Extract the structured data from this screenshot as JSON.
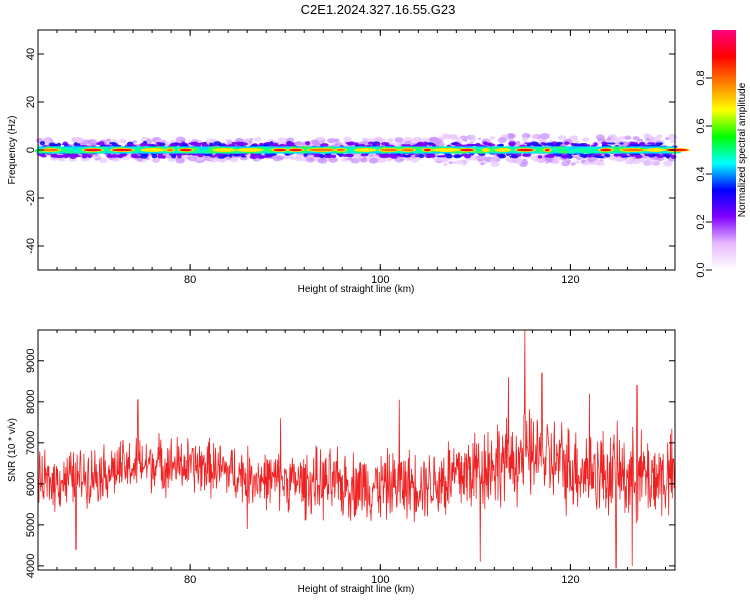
{
  "title": "C2E1.2024.327.16.55.G23",
  "chart_data": [
    {
      "type": "heatmap",
      "xlabel": "Height of straight line (km)",
      "ylabel": "Frequency (Hz)",
      "xlim": [
        64,
        131
      ],
      "ylim": [
        -50,
        50
      ],
      "xticks": [
        80,
        100,
        120
      ],
      "yticks": [
        40,
        20,
        0,
        -20,
        -40
      ],
      "grid": false,
      "colorbar": {
        "label": "Normalized spectral amplitude",
        "range": [
          0,
          1
        ],
        "ticks": [
          "0.0",
          "0.2",
          "0.4",
          "0.6",
          "0.8"
        ],
        "colors": [
          "#ffffff",
          "#e6b8ff",
          "#8000ff",
          "#0000ff",
          "#00ffff",
          "#00ff00",
          "#ffff00",
          "#ff8000",
          "#ff0000",
          "#ff0080"
        ]
      },
      "band": {
        "center_hz": 0,
        "core_halfwidth_hz": 1.5,
        "halo_halfwidth_hz": 4.5
      }
    },
    {
      "type": "line",
      "xlabel": "Height of straight line (km)",
      "ylabel": "SNR (10 * v/v)",
      "xlim": [
        64,
        131
      ],
      "ylim": [
        3900,
        9750
      ],
      "xticks": [
        80,
        100,
        120
      ],
      "yticks": [
        4000,
        5000,
        6000,
        7000,
        8000,
        9000
      ],
      "grid": false,
      "color": "#ee2222",
      "trend": [
        {
          "x": 64,
          "y": 6000
        },
        {
          "x": 70,
          "y": 6250
        },
        {
          "x": 76,
          "y": 6500
        },
        {
          "x": 82,
          "y": 6400
        },
        {
          "x": 88,
          "y": 6100
        },
        {
          "x": 94,
          "y": 6000
        },
        {
          "x": 100,
          "y": 5950
        },
        {
          "x": 106,
          "y": 6050
        },
        {
          "x": 112,
          "y": 6500
        },
        {
          "x": 116,
          "y": 6700
        },
        {
          "x": 120,
          "y": 6400
        },
        {
          "x": 126,
          "y": 6200
        },
        {
          "x": 131,
          "y": 6150
        }
      ],
      "spikes": [
        {
          "x": 74.5,
          "y": 8050
        },
        {
          "x": 89.5,
          "y": 7600
        },
        {
          "x": 102,
          "y": 8050
        },
        {
          "x": 113.5,
          "y": 8600
        },
        {
          "x": 115.2,
          "y": 9750
        },
        {
          "x": 117,
          "y": 8700
        },
        {
          "x": 122,
          "y": 8200
        },
        {
          "x": 127,
          "y": 8400
        },
        {
          "x": 110.5,
          "y": 4100
        },
        {
          "x": 124.8,
          "y": 3950
        },
        {
          "x": 126.5,
          "y": 4000
        },
        {
          "x": 68,
          "y": 4400
        },
        {
          "x": 86,
          "y": 4900
        }
      ]
    }
  ]
}
